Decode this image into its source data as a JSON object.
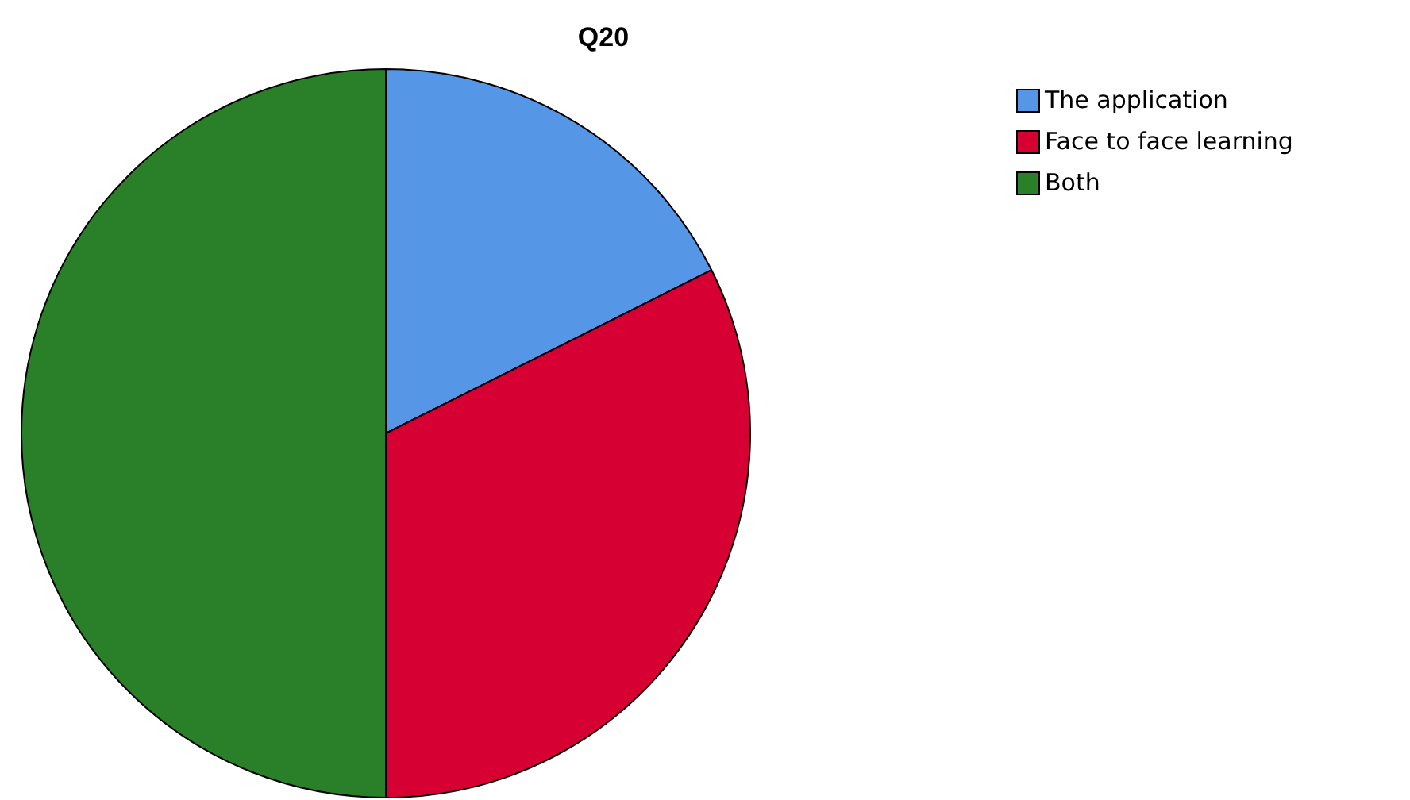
{
  "chart_data": {
    "type": "pie",
    "title": "Q20",
    "categories": [
      "The application",
      "Face to face learning",
      "Both"
    ],
    "values": [
      17.6,
      32.4,
      50
    ],
    "colors": [
      "#5596e6",
      "#d60032",
      "#298029"
    ],
    "legend": "top right"
  }
}
